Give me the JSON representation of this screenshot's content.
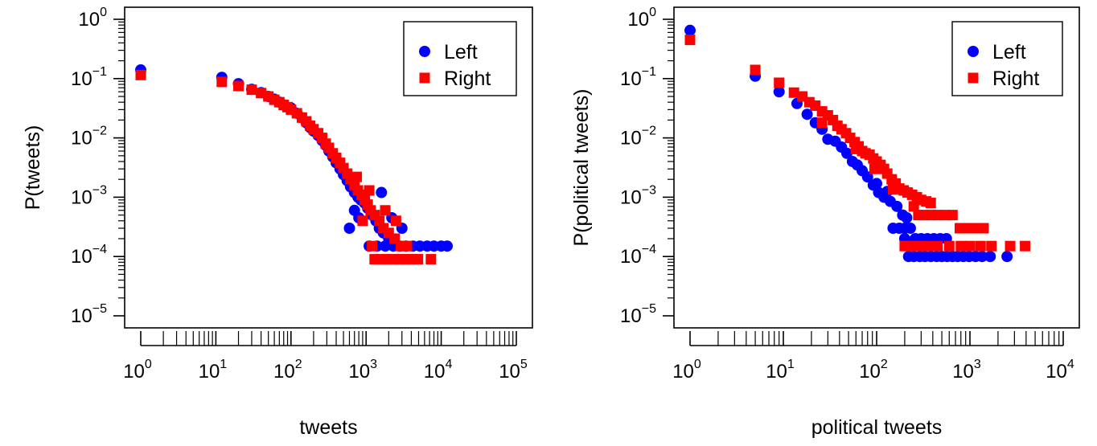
{
  "colors": {
    "left": "#0000ff",
    "right": "#ff0000",
    "axis": "#000000"
  },
  "legend": {
    "left_label": "Left",
    "right_label": "Right",
    "left_marker": "circle",
    "right_marker": "square",
    "placement": "top-right"
  },
  "chart_data": [
    {
      "type": "scatter",
      "title": "",
      "xlabel": "tweets",
      "ylabel": "P(tweets)",
      "xscale": "log",
      "yscale": "log",
      "xlim": [
        1,
        100000
      ],
      "ylim": [
        1e-05,
        1
      ],
      "grid": false,
      "x_ticks": [
        {
          "base": "10",
          "exp": "0",
          "value": 1
        },
        {
          "base": "10",
          "exp": "1",
          "value": 10
        },
        {
          "base": "10",
          "exp": "2",
          "value": 100
        },
        {
          "base": "10",
          "exp": "3",
          "value": 1000
        },
        {
          "base": "10",
          "exp": "4",
          "value": 10000
        },
        {
          "base": "10",
          "exp": "5",
          "value": 100000
        }
      ],
      "y_ticks": [
        {
          "base": "10",
          "exp": "0",
          "value": 1
        },
        {
          "base": "10",
          "exp": "−1",
          "value": 0.1
        },
        {
          "base": "10",
          "exp": "−2",
          "value": 0.01
        },
        {
          "base": "10",
          "exp": "−3",
          "value": 0.001
        },
        {
          "base": "10",
          "exp": "−4",
          "value": 0.0001
        },
        {
          "base": "10",
          "exp": "−5",
          "value": 1e-05
        }
      ],
      "series": [
        {
          "name": "Left",
          "marker": "circle",
          "points": [
            [
              1,
              0.14
            ],
            [
              12,
              0.105
            ],
            [
              20,
              0.082
            ],
            [
              30,
              0.066
            ],
            [
              40,
              0.058
            ],
            [
              50,
              0.05
            ],
            [
              60,
              0.045
            ],
            [
              70,
              0.04
            ],
            [
              80,
              0.036
            ],
            [
              100,
              0.032
            ],
            [
              120,
              0.026
            ],
            [
              140,
              0.022
            ],
            [
              160,
              0.018
            ],
            [
              180,
              0.015
            ],
            [
              200,
              0.013
            ],
            [
              230,
              0.011
            ],
            [
              260,
              0.009
            ],
            [
              290,
              0.0075
            ],
            [
              320,
              0.006
            ],
            [
              360,
              0.0048
            ],
            [
              400,
              0.0038
            ],
            [
              450,
              0.003
            ],
            [
              500,
              0.0024
            ],
            [
              560,
              0.0019
            ],
            [
              620,
              0.0015
            ],
            [
              700,
              0.0012
            ],
            [
              780,
              0.001
            ],
            [
              850,
              0.0009
            ],
            [
              950,
              0.0008
            ],
            [
              1050,
              0.00065
            ],
            [
              1200,
              0.0005
            ],
            [
              1350,
              0.0004
            ],
            [
              1500,
              0.0003
            ],
            [
              1700,
              0.00025
            ],
            [
              2000,
              0.0002
            ],
            [
              1100,
              0.00015
            ],
            [
              1400,
              0.00015
            ],
            [
              1800,
              0.00015
            ],
            [
              2300,
              0.00015
            ],
            [
              2800,
              0.00015
            ],
            [
              3400,
              0.00015
            ],
            [
              4200,
              0.00015
            ],
            [
              5200,
              0.00015
            ],
            [
              6500,
              0.00015
            ],
            [
              8000,
              0.00015
            ],
            [
              10000,
              0.00015
            ],
            [
              12000,
              0.00015
            ],
            [
              600,
              0.0003
            ],
            [
              700,
              0.0006
            ],
            [
              1600,
              0.0012
            ],
            [
              2200,
              0.00045
            ],
            [
              3000,
              0.0003
            ],
            [
              800,
              0.00045
            ]
          ]
        },
        {
          "name": "Right",
          "marker": "square",
          "points": [
            [
              1,
              0.115
            ],
            [
              12,
              0.088
            ],
            [
              20,
              0.075
            ],
            [
              30,
              0.065
            ],
            [
              40,
              0.057
            ],
            [
              50,
              0.05
            ],
            [
              60,
              0.044
            ],
            [
              70,
              0.04
            ],
            [
              80,
              0.036
            ],
            [
              90,
              0.033
            ],
            [
              100,
              0.03
            ],
            [
              120,
              0.026
            ],
            [
              140,
              0.022
            ],
            [
              160,
              0.019
            ],
            [
              180,
              0.016
            ],
            [
              200,
              0.014
            ],
            [
              230,
              0.012
            ],
            [
              260,
              0.01
            ],
            [
              290,
              0.008
            ],
            [
              320,
              0.0068
            ],
            [
              360,
              0.0055
            ],
            [
              400,
              0.0046
            ],
            [
              450,
              0.0038
            ],
            [
              500,
              0.0031
            ],
            [
              560,
              0.0025
            ],
            [
              620,
              0.002
            ],
            [
              700,
              0.0016
            ],
            [
              780,
              0.0013
            ],
            [
              870,
              0.0011
            ],
            [
              960,
              0.0009
            ],
            [
              1050,
              0.00075
            ],
            [
              1150,
              0.0006
            ],
            [
              1300,
              0.0005
            ],
            [
              1500,
              0.0004
            ],
            [
              1700,
              0.0003
            ],
            [
              2000,
              0.00025
            ],
            [
              2400,
              0.0002
            ],
            [
              2900,
              0.00015
            ],
            [
              3500,
              0.00015
            ],
            [
              1300,
              9e-05
            ],
            [
              1600,
              9e-05
            ],
            [
              1900,
              9e-05
            ],
            [
              2300,
              9e-05
            ],
            [
              2800,
              9e-05
            ],
            [
              3400,
              9e-05
            ],
            [
              4100,
              9e-05
            ],
            [
              4900,
              9e-05
            ],
            [
              7300,
              9e-05
            ],
            [
              900,
              0.0004
            ],
            [
              1100,
              0.0013
            ],
            [
              1800,
              0.0006
            ],
            [
              2500,
              0.0004
            ],
            [
              750,
              0.0022
            ],
            [
              1200,
              0.00015
            ]
          ]
        }
      ]
    },
    {
      "type": "scatter",
      "title": "",
      "xlabel": "political tweets",
      "ylabel": "P(political tweets)",
      "xscale": "log",
      "yscale": "log",
      "xlim": [
        1,
        10000
      ],
      "ylim": [
        1e-05,
        1
      ],
      "grid": false,
      "x_ticks": [
        {
          "base": "10",
          "exp": "0",
          "value": 1
        },
        {
          "base": "10",
          "exp": "1",
          "value": 10
        },
        {
          "base": "10",
          "exp": "2",
          "value": 100
        },
        {
          "base": "10",
          "exp": "3",
          "value": 1000
        },
        {
          "base": "10",
          "exp": "4",
          "value": 10000
        }
      ],
      "y_ticks": [
        {
          "base": "10",
          "exp": "0",
          "value": 1
        },
        {
          "base": "10",
          "exp": "−1",
          "value": 0.1
        },
        {
          "base": "10",
          "exp": "−2",
          "value": 0.01
        },
        {
          "base": "10",
          "exp": "−3",
          "value": 0.001
        },
        {
          "base": "10",
          "exp": "−4",
          "value": 0.0001
        },
        {
          "base": "10",
          "exp": "−5",
          "value": 1e-05
        }
      ],
      "series": [
        {
          "name": "Left",
          "marker": "circle",
          "points": [
            [
              1,
              0.65
            ],
            [
              5,
              0.11
            ],
            [
              9,
              0.06
            ],
            [
              14,
              0.038
            ],
            [
              18,
              0.025
            ],
            [
              22,
              0.018
            ],
            [
              26,
              0.014
            ],
            [
              30,
              0.0095
            ],
            [
              36,
              0.0088
            ],
            [
              42,
              0.007
            ],
            [
              48,
              0.0055
            ],
            [
              55,
              0.004
            ],
            [
              62,
              0.0035
            ],
            [
              70,
              0.0028
            ],
            [
              80,
              0.0022
            ],
            [
              92,
              0.0016
            ],
            [
              105,
              0.0012
            ],
            [
              120,
              0.001
            ],
            [
              140,
              0.00085
            ],
            [
              165,
              0.0007
            ],
            [
              190,
              0.0005
            ],
            [
              210,
              0.00045
            ],
            [
              150,
              0.0003
            ],
            [
              175,
              0.0003
            ],
            [
              200,
              0.0003
            ],
            [
              230,
              0.0003
            ],
            [
              260,
              0.0002
            ],
            [
              300,
              0.0002
            ],
            [
              350,
              0.0002
            ],
            [
              410,
              0.0002
            ],
            [
              480,
              0.0002
            ],
            [
              560,
              0.0002
            ],
            [
              200,
              0.0002
            ],
            [
              220,
              0.0001
            ],
            [
              250,
              0.0001
            ],
            [
              290,
              0.0001
            ],
            [
              330,
              0.0001
            ],
            [
              380,
              0.0001
            ],
            [
              440,
              0.0001
            ],
            [
              500,
              0.0001
            ],
            [
              570,
              0.0001
            ],
            [
              650,
              0.0001
            ],
            [
              740,
              0.0001
            ],
            [
              850,
              0.0001
            ],
            [
              980,
              0.0001
            ],
            [
              1150,
              0.0001
            ],
            [
              1350,
              0.0001
            ],
            [
              1650,
              0.0001
            ],
            [
              2500,
              0.0001
            ],
            [
              100,
              0.0017
            ],
            [
              130,
              0.00125
            ]
          ]
        },
        {
          "name": "Right",
          "marker": "square",
          "points": [
            [
              1,
              0.45
            ],
            [
              5,
              0.14
            ],
            [
              9,
              0.085
            ],
            [
              13,
              0.058
            ],
            [
              16,
              0.05
            ],
            [
              19,
              0.04
            ],
            [
              22,
              0.035
            ],
            [
              26,
              0.028
            ],
            [
              30,
              0.024
            ],
            [
              26,
              0.018
            ],
            [
              34,
              0.02
            ],
            [
              38,
              0.016
            ],
            [
              42,
              0.014
            ],
            [
              47,
              0.012
            ],
            [
              52,
              0.01
            ],
            [
              58,
              0.0085
            ],
            [
              64,
              0.0072
            ],
            [
              70,
              0.006
            ],
            [
              76,
              0.0055
            ],
            [
              84,
              0.0052
            ],
            [
              92,
              0.0045
            ],
            [
              100,
              0.004
            ],
            [
              110,
              0.0035
            ],
            [
              120,
              0.003
            ],
            [
              130,
              0.0025
            ],
            [
              145,
              0.002
            ],
            [
              160,
              0.0017
            ],
            [
              175,
              0.0014
            ],
            [
              195,
              0.0013
            ],
            [
              215,
              0.0012
            ],
            [
              240,
              0.0011
            ],
            [
              270,
              0.001
            ],
            [
              300,
              0.0009
            ],
            [
              340,
              0.00085
            ],
            [
              380,
              0.0008
            ],
            [
              250,
              0.0007
            ],
            [
              280,
              0.0005
            ],
            [
              320,
              0.0005
            ],
            [
              380,
              0.0005
            ],
            [
              450,
              0.0005
            ],
            [
              540,
              0.0005
            ],
            [
              650,
              0.0005
            ],
            [
              780,
              0.0003
            ],
            [
              950,
              0.0003
            ],
            [
              1150,
              0.0003
            ],
            [
              1400,
              0.0003
            ],
            [
              200,
              0.00015
            ],
            [
              230,
              0.00015
            ],
            [
              280,
              0.00015
            ],
            [
              350,
              0.00015
            ],
            [
              450,
              0.00015
            ],
            [
              600,
              0.00015
            ],
            [
              800,
              0.00015
            ],
            [
              1000,
              0.00015
            ],
            [
              1300,
              0.00015
            ],
            [
              1700,
              0.00015
            ],
            [
              2700,
              0.00015
            ],
            [
              3900,
              0.00015
            ],
            [
              60,
              0.0065
            ],
            [
              95,
              0.003
            ],
            [
              150,
              0.00135
            ]
          ]
        }
      ]
    }
  ]
}
